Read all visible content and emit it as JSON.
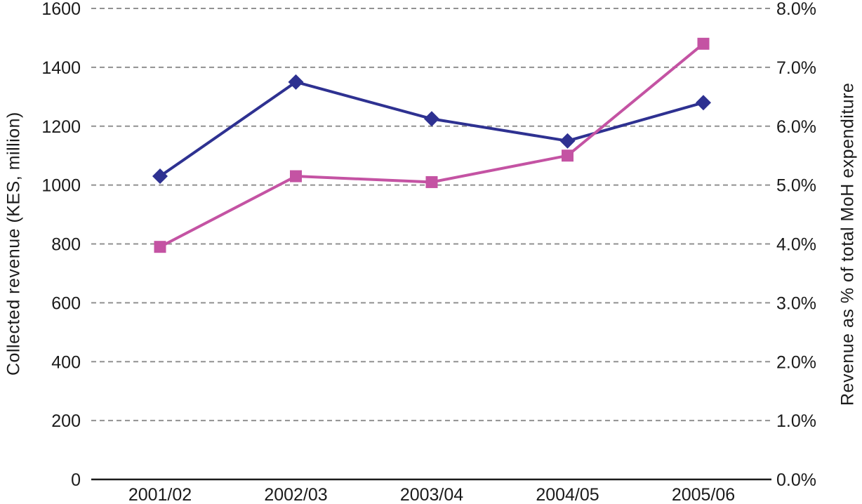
{
  "chart_data": {
    "type": "line",
    "categories": [
      "2001/02",
      "2002/03",
      "2003/04",
      "2004/05",
      "2005/06"
    ],
    "series": [
      {
        "name": "Collected revenue (KES, million)",
        "axis": "left",
        "marker": "diamond",
        "color": "#2e3191",
        "values": [
          1030,
          1350,
          1225,
          1150,
          1280
        ]
      },
      {
        "name": "Revenue as % of total MoH expenditure",
        "axis": "right",
        "marker": "square",
        "color": "#c453a3",
        "values": [
          3.95,
          5.15,
          5.05,
          5.5,
          7.4
        ]
      }
    ],
    "left_axis": {
      "label": "Collected revenue (KES, million)",
      "min": 0,
      "max": 1600,
      "step": 200,
      "tick_labels": [
        "0",
        "200",
        "400",
        "600",
        "800",
        "1000",
        "1200",
        "1400",
        "1600"
      ]
    },
    "right_axis": {
      "label": "Revenue as % of total MoH expenditure",
      "min": 0,
      "max": 8,
      "step": 1,
      "tick_labels": [
        "0.0%",
        "1.0%",
        "2.0%",
        "3.0%",
        "4.0%",
        "5.0%",
        "6.0%",
        "7.0%",
        "8.0%"
      ]
    },
    "grid": {
      "visible": true,
      "style": "dashed",
      "color": "#919191"
    },
    "axis_line_color": "#1b1b1b",
    "legend": {
      "visible": false
    }
  }
}
